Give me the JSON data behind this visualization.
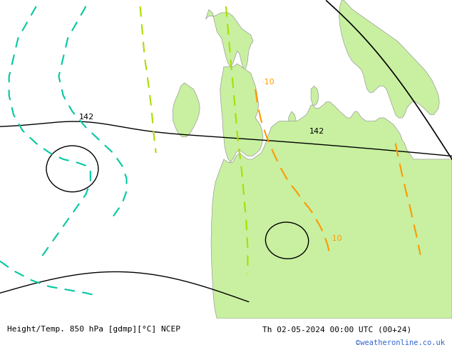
{
  "title_left": "Height/Temp. 850 hPa [gdmp][°C] NCEP",
  "title_right": "Th 02-05-2024 00:00 UTC (00+24)",
  "watermark": "©weatheronline.co.uk",
  "bg_color": "#d8d8d8",
  "land_color": "#c8f0a0",
  "land_edge_color": "#999999",
  "fig_width": 6.34,
  "fig_height": 4.9,
  "dpi": 100
}
